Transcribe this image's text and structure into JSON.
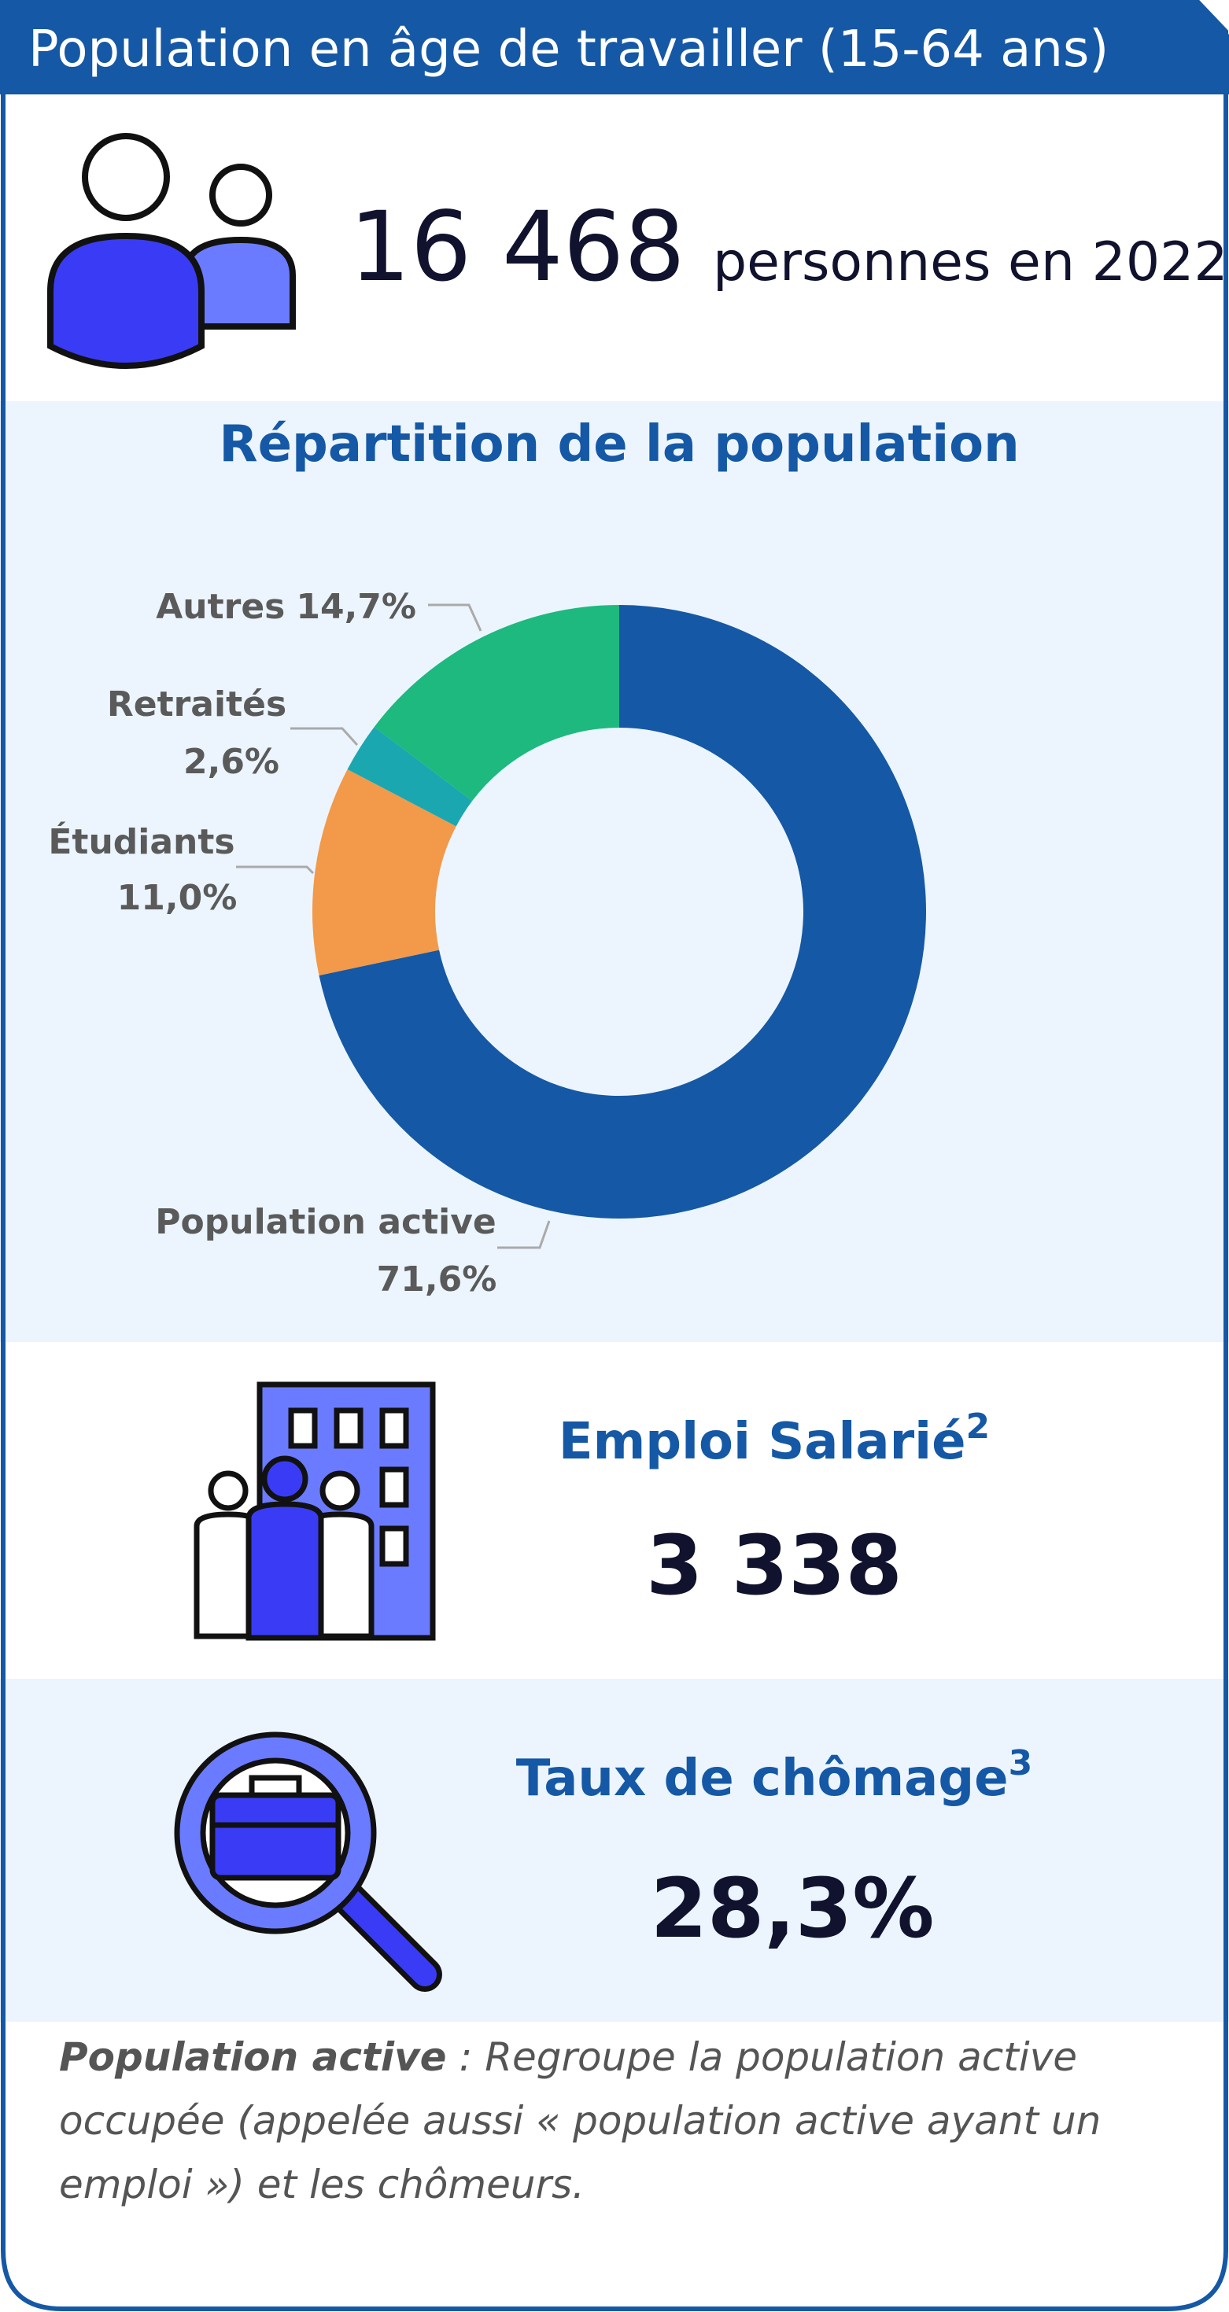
{
  "header": {
    "title": "Population en âge de travailler (15-64 ans)"
  },
  "population": {
    "value": "16 468",
    "label": "personnes en 2022"
  },
  "chart_data": {
    "type": "pie",
    "title": "Répartition de la population",
    "categories": [
      "Population active",
      "Étudiants",
      "Retraités",
      "Autres"
    ],
    "values": [
      71.6,
      11.0,
      2.6,
      14.7
    ],
    "value_labels": [
      "71,6%",
      "11,0%",
      "2,6%",
      "14,7%"
    ],
    "colors": [
      "#1558a5",
      "#f2994a",
      "#1aa7b0",
      "#1db97e"
    ]
  },
  "emploi": {
    "title": "Emploi Salarié",
    "note": "2",
    "value": "3 338"
  },
  "chomage": {
    "title": "Taux de chômage",
    "note": "3",
    "value": "28,3%"
  },
  "footnote": {
    "term": "Population active",
    "lines": [
      " : Regroupe la population active",
      "occupée (appelée aussi « population active ayant un",
      "emploi ») et les chômeurs."
    ]
  }
}
